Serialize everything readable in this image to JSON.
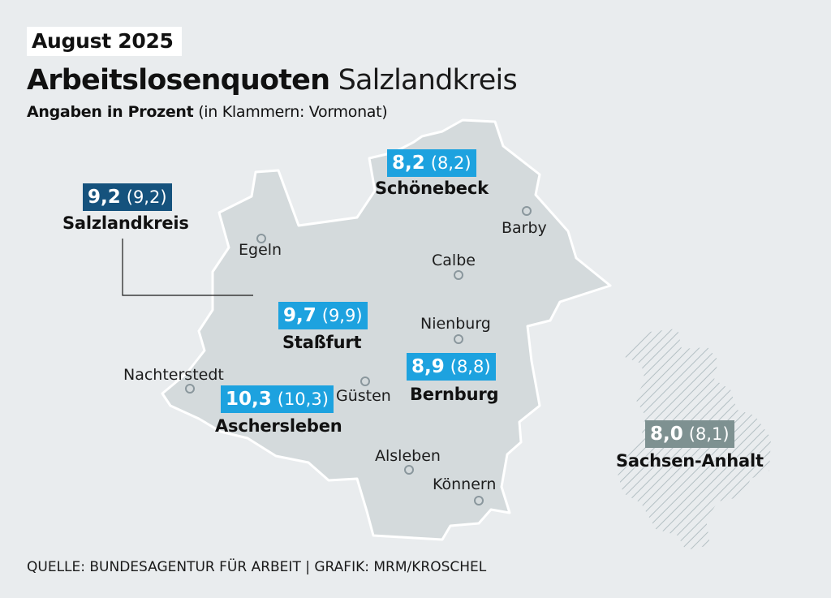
{
  "header": {
    "date": "August 2025",
    "title_bold": "Arbeitslosenquoten",
    "title_light": "Salzlandkreis",
    "subtitle_bold": "Angaben in Prozent",
    "subtitle_light": "(in Klammern: Vormonat)"
  },
  "footer": {
    "source": "QUELLE: BUNDESAGENTUR FÜR ARBEIT | GRAFIK: MRM/KROSCHEL"
  },
  "colors": {
    "background": "#e9ecee",
    "district_fill": "#d4dadc",
    "district_stroke": "#ffffff",
    "region_light_blue": "#1da2df",
    "district_dark_blue": "#15527d",
    "state_grey": "#7e9191",
    "town_marker": "#8a979d"
  },
  "rates": {
    "salzlandkreis": {
      "name": "Salzlandkreis",
      "current": "9,2",
      "previous": "(9,2)"
    },
    "schoenebeck": {
      "name": "Schönebeck",
      "current": "8,2",
      "previous": "(8,2)"
    },
    "stassfurt": {
      "name": "Staßfurt",
      "current": "9,7",
      "previous": "(9,9)"
    },
    "bernburg": {
      "name": "Bernburg",
      "current": "8,9",
      "previous": "(8,8)"
    },
    "aschersleben": {
      "name": "Aschersleben",
      "current": "10,3",
      "previous": "(10,3)"
    },
    "sachsen_anhalt": {
      "name": "Sachsen-Anhalt",
      "current": "8,0",
      "previous": "(8,1)"
    }
  },
  "towns": {
    "egeln": "Egeln",
    "barby": "Barby",
    "calbe": "Calbe",
    "nienburg": "Nienburg",
    "nachterstedt": "Nachterstedt",
    "guesten": "Güsten",
    "alsleben": "Alsleben",
    "koennern": "Könnern"
  }
}
